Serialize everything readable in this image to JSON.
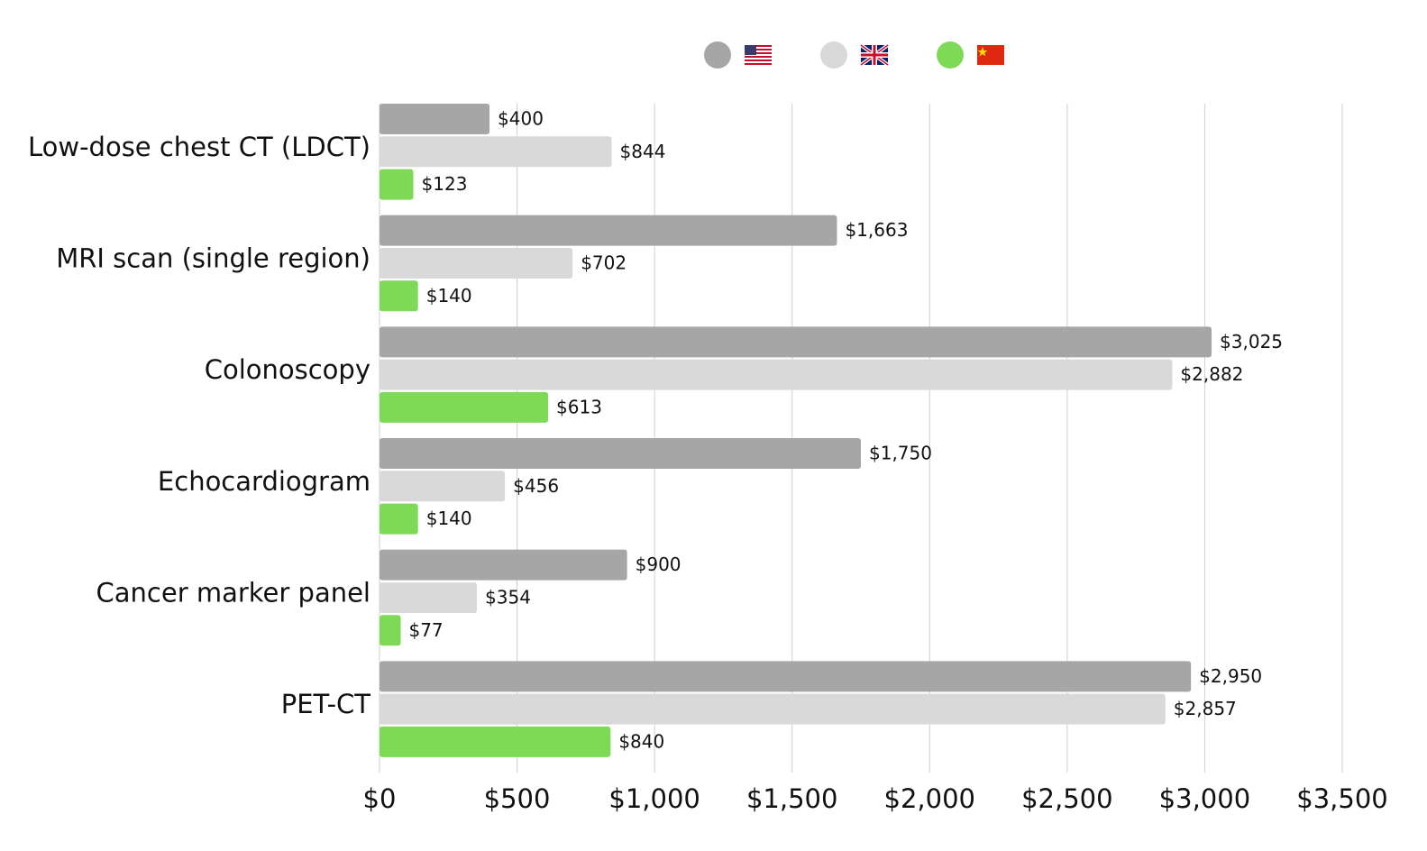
{
  "chart_data": {
    "type": "bar",
    "orientation": "horizontal",
    "categories": [
      "Low-dose chest CT (LDCT)",
      "MRI scan (single region)",
      "Colonoscopy",
      "Echocardiogram",
      "Cancer marker panel",
      "PET-CT"
    ],
    "series": [
      {
        "color": "#a6a6a6",
        "values": [
          400,
          1663,
          3025,
          1750,
          900,
          2950
        ],
        "value_labels": [
          "$400",
          "$1,663",
          "$3,025",
          "$1,750",
          "$900",
          "$2,950"
        ]
      },
      {
        "color": "#d9d9d9",
        "values": [
          844,
          702,
          2882,
          456,
          354,
          2857
        ],
        "value_labels": [
          "$844",
          "$702",
          "$2,882",
          "$456",
          "$354",
          "$2,857"
        ]
      },
      {
        "color": "#7ed957",
        "values": [
          123,
          140,
          613,
          140,
          77,
          840
        ],
        "value_labels": [
          "$123",
          "$140",
          "$613",
          "$140",
          "$77",
          "$840"
        ]
      }
    ],
    "xlim": [
      0,
      3500
    ],
    "xticks": [
      {
        "value": 0,
        "label": "$0"
      },
      {
        "value": 500,
        "label": "$500"
      },
      {
        "value": 1000,
        "label": "$1,000"
      },
      {
        "value": 1500,
        "label": "$1,500"
      },
      {
        "value": 2000,
        "label": "$2,000"
      },
      {
        "value": 2500,
        "label": "$2,500"
      },
      {
        "value": 3000,
        "label": "$3,000"
      },
      {
        "value": 3500,
        "label": "$3,500"
      }
    ],
    "grid": true,
    "legend": "top"
  }
}
